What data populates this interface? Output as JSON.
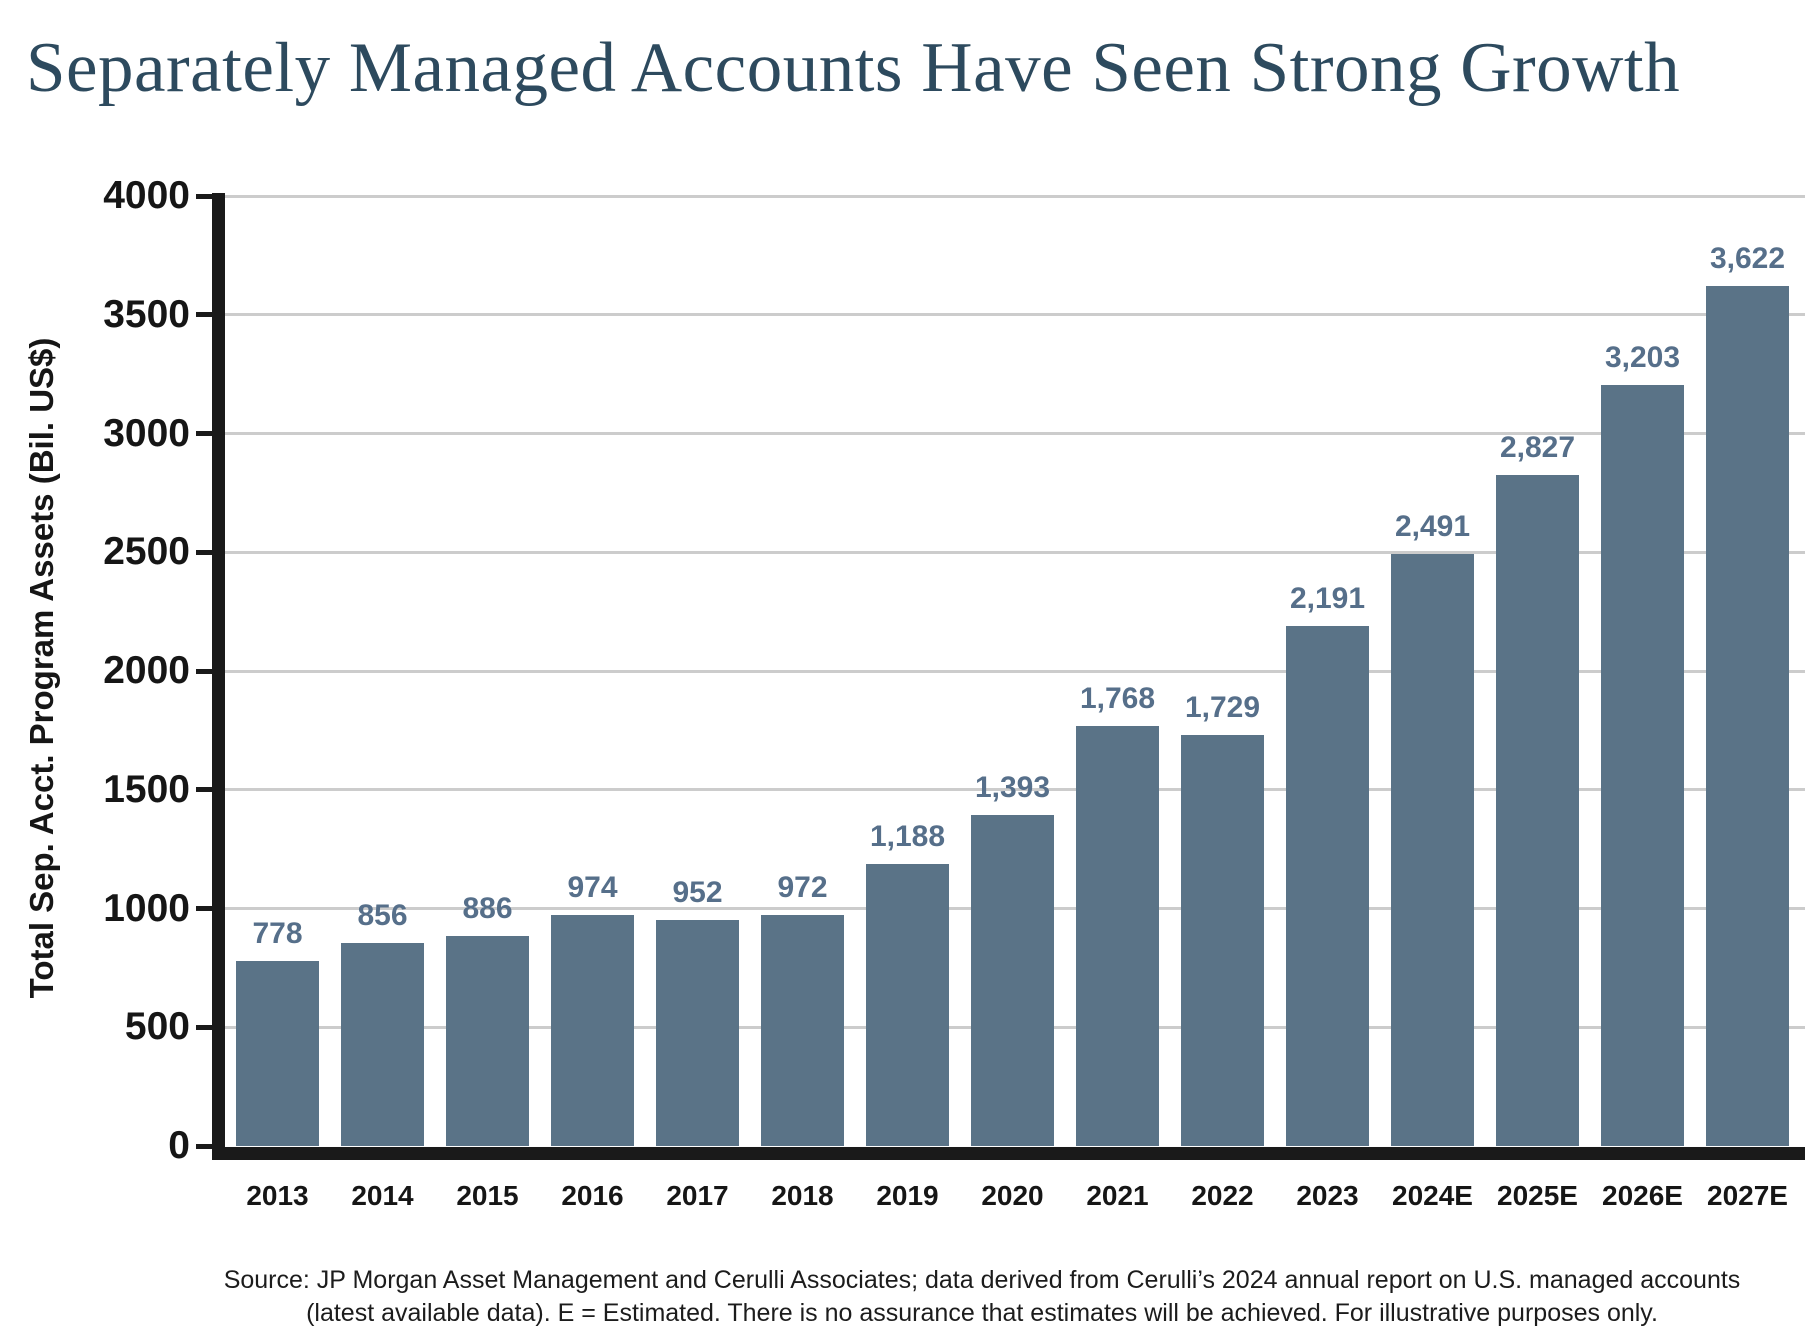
{
  "title": "Separately Managed Accounts Have Seen Strong Growth",
  "chart_data": {
    "type": "bar",
    "title": "Separately Managed Accounts Have Seen Strong Growth",
    "categories": [
      "2013",
      "2014",
      "2015",
      "2016",
      "2017",
      "2018",
      "2019",
      "2020",
      "2021",
      "2022",
      "2023",
      "2024E",
      "2025E",
      "2026E",
      "2027E"
    ],
    "values": [
      778,
      856,
      886,
      974,
      952,
      972,
      1188,
      1393,
      1768,
      1729,
      2191,
      2491,
      2827,
      3203,
      3622
    ],
    "value_labels": [
      "778",
      "856",
      "886",
      "974",
      "952",
      "972",
      "1,188",
      "1,393",
      "1,768",
      "1,729",
      "2,191",
      "2,491",
      "2,827",
      "3,203",
      "3,622"
    ],
    "xlabel": "",
    "ylabel": "Total Sep. Acct. Program Assets (Bil. US$)",
    "ylim": [
      0,
      4000
    ],
    "yticks": [
      0,
      500,
      1000,
      1500,
      2000,
      2500,
      3000,
      3500,
      4000
    ],
    "grid": "horizontal-only",
    "legend": "none",
    "bar_color": "#5a7387",
    "value_label_color": "#566f8a"
  },
  "source": {
    "line1": "Source: JP Morgan Asset Management and Cerulli Associates; data derived from Cerulli’s 2024 annual report on U.S. managed accounts",
    "line2": "(latest available data). E = Estimated. There is no assurance that estimates will be achieved. For illustrative purposes only."
  },
  "colors": {
    "title": "#2d4a5e",
    "axis": "#1a1a1a",
    "gridline": "#cccccc",
    "tick_label": "#161616",
    "background": "#ffffff"
  }
}
